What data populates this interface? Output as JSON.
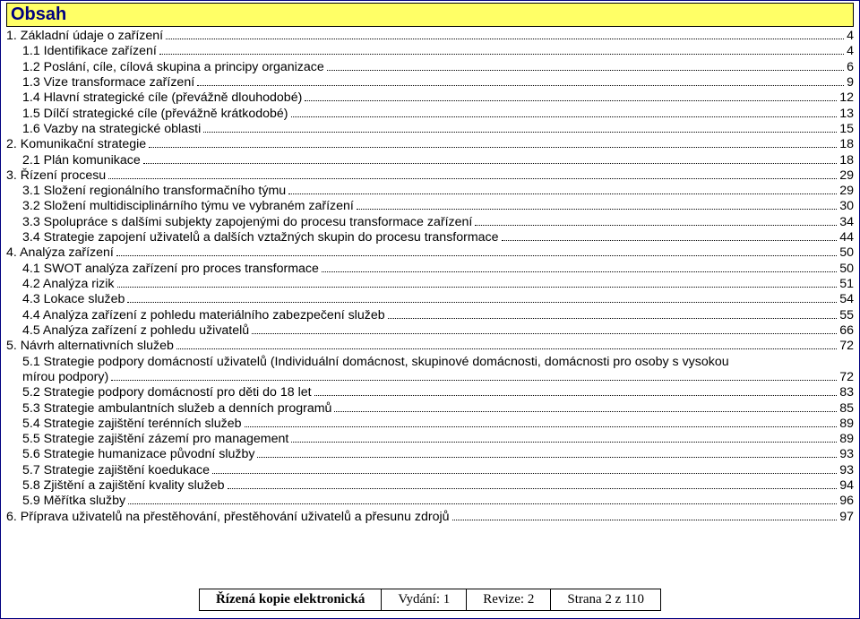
{
  "title": "Obsah",
  "toc": [
    {
      "level": 0,
      "label": "1. Základní údaje o zařízení",
      "page": "4"
    },
    {
      "level": 1,
      "label": "1.1 Identifikace zařízení",
      "page": "4"
    },
    {
      "level": 1,
      "label": "1.2 Poslání, cíle, cílová skupina a principy organizace",
      "page": "6"
    },
    {
      "level": 1,
      "label": "1.3 Vize transformace zařízení",
      "page": "9"
    },
    {
      "level": 1,
      "label": "1.4 Hlavní strategické cíle (převážně dlouhodobé)",
      "page": "12"
    },
    {
      "level": 1,
      "label": "1.5 Dílčí strategické cíle (převážně krátkodobé)",
      "page": "13"
    },
    {
      "level": 1,
      "label": "1.6 Vazby na strategické oblasti",
      "page": "15"
    },
    {
      "level": 0,
      "label": "2. Komunikační strategie",
      "page": "18"
    },
    {
      "level": 1,
      "label": "2.1 Plán komunikace",
      "page": "18"
    },
    {
      "level": 0,
      "label": "3. Řízení procesu",
      "page": "29"
    },
    {
      "level": 1,
      "label": "3.1 Složení regionálního transformačního týmu",
      "page": "29"
    },
    {
      "level": 1,
      "label": "3.2 Složení multidisciplinárního týmu ve vybraném zařízení",
      "page": "30"
    },
    {
      "level": 1,
      "label": "3.3 Spolupráce s dalšími subjekty zapojenými do procesu transformace zařízení",
      "page": "34"
    },
    {
      "level": 1,
      "label": "3.4 Strategie zapojení uživatelů a dalších vztažných skupin do procesu transformace",
      "page": "44"
    },
    {
      "level": 0,
      "label": "4. Analýza zařízení",
      "page": "50"
    },
    {
      "level": 1,
      "label": "4.1 SWOT analýza zařízení pro proces transformace",
      "page": "50"
    },
    {
      "level": 1,
      "label": "4.2 Analýza rizik",
      "page": "51"
    },
    {
      "level": 1,
      "label": "4.3 Lokace služeb",
      "page": "54"
    },
    {
      "level": 1,
      "label": "4.4 Analýza zařízení z pohledu materiálního zabezpečení služeb",
      "page": "55"
    },
    {
      "level": 1,
      "label": "4.5 Analýza zařízení z pohledu uživatelů",
      "page": "66"
    },
    {
      "level": 0,
      "label": "5. Návrh alternativních služeb",
      "page": "72"
    },
    {
      "level": 1,
      "twoLine": true,
      "label1": "5.1 Strategie podpory domácností uživatelů (Individuální domácnost, skupinové domácnosti, domácnosti pro osoby s vysokou",
      "label2": "mírou podpory)",
      "page": "72"
    },
    {
      "level": 1,
      "label": "5.2 Strategie podpory domácností pro děti do 18 let",
      "page": "83"
    },
    {
      "level": 1,
      "label": "5.3 Strategie ambulantních služeb a denních programů",
      "page": "85"
    },
    {
      "level": 1,
      "label": "5.4 Strategie zajištění terénních služeb",
      "page": "89"
    },
    {
      "level": 1,
      "label": "5.5 Strategie zajištění zázemí pro management",
      "page": "89"
    },
    {
      "level": 1,
      "label": "5.6 Strategie humanizace původní služby",
      "page": "93"
    },
    {
      "level": 1,
      "label": "5.7 Strategie zajištění koedukace",
      "page": "93"
    },
    {
      "level": 1,
      "label": "5.8 Zjištění a zajištění kvality služeb",
      "page": "94"
    },
    {
      "level": 1,
      "label": "5.9 Měřítka služby",
      "page": "96"
    },
    {
      "level": 0,
      "label": "6. Příprava uživatelů na přestěhování, přestěhování uživatelů a přesunu zdrojů",
      "page": "97"
    }
  ],
  "footer": {
    "c1": "Řízená kopie elektronická",
    "c2": "Vydání: 1",
    "c3": "Revize: 2",
    "c4": "Strana 2 z 110"
  },
  "colors": {
    "title_bg": "#ffff66",
    "title_text": "#000080",
    "page_border": "#000080",
    "text": "#000000"
  }
}
